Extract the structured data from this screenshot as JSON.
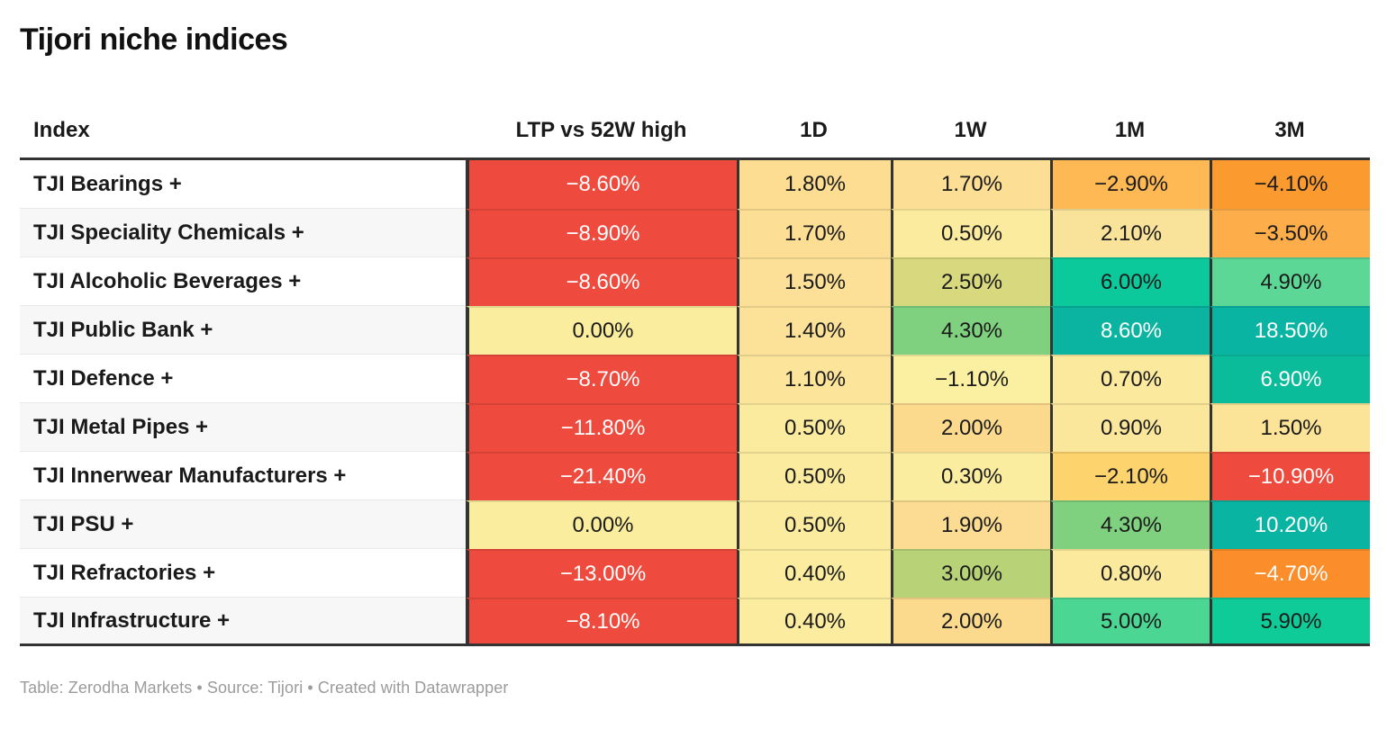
{
  "chart_data": {
    "type": "table",
    "title": "Tijori niche indices",
    "footer": "Table: Zerodha Markets • Source: Tijori • Created with Datawrapper",
    "columns": [
      {
        "label": "Index"
      },
      {
        "label": "LTP vs 52W high"
      },
      {
        "label": "1D"
      },
      {
        "label": "1W"
      },
      {
        "label": "1M"
      },
      {
        "label": "3M"
      }
    ],
    "palette": {
      "negative_red": "#ee4b3e",
      "neutral_yellow": "#faee9e",
      "positive_teal": "#0ab4a2",
      "border_dark": "#333333"
    },
    "rows": [
      {
        "index": "TJI Bearings +",
        "values": [
          {
            "text": "−8.60%",
            "bg": "#ee4b3e",
            "fg": "#ffffff"
          },
          {
            "text": "1.80%",
            "bg": "#fcdd92",
            "fg": "#1a1a1a"
          },
          {
            "text": "1.70%",
            "bg": "#fcde94",
            "fg": "#1a1a1a"
          },
          {
            "text": "−2.90%",
            "bg": "#feb955",
            "fg": "#1a1a1a"
          },
          {
            "text": "−4.10%",
            "bg": "#fb9a2e",
            "fg": "#1a1a1a"
          }
        ]
      },
      {
        "index": "TJI Speciality Chemicals +",
        "values": [
          {
            "text": "−8.90%",
            "bg": "#ee4b3e",
            "fg": "#ffffff"
          },
          {
            "text": "1.70%",
            "bg": "#fcde94",
            "fg": "#1a1a1a"
          },
          {
            "text": "0.50%",
            "bg": "#fbeb9e",
            "fg": "#1a1a1a"
          },
          {
            "text": "2.10%",
            "bg": "#f9e299",
            "fg": "#1a1a1a"
          },
          {
            "text": "−3.50%",
            "bg": "#fdad49",
            "fg": "#1a1a1a"
          }
        ]
      },
      {
        "index": "TJI Alcoholic Beverages +",
        "values": [
          {
            "text": "−8.60%",
            "bg": "#ee4b3e",
            "fg": "#ffffff"
          },
          {
            "text": "1.50%",
            "bg": "#fce098",
            "fg": "#1a1a1a"
          },
          {
            "text": "2.50%",
            "bg": "#d8d87e",
            "fg": "#1a1a1a"
          },
          {
            "text": "6.00%",
            "bg": "#0bc99b",
            "fg": "#1a1a1a"
          },
          {
            "text": "4.90%",
            "bg": "#5cd796",
            "fg": "#1a1a1a"
          }
        ]
      },
      {
        "index": "TJI Public Bank +",
        "values": [
          {
            "text": "0.00%",
            "bg": "#faee9e",
            "fg": "#1a1a1a"
          },
          {
            "text": "1.40%",
            "bg": "#fce199",
            "fg": "#1a1a1a"
          },
          {
            "text": "4.30%",
            "bg": "#7fd17f",
            "fg": "#1a1a1a"
          },
          {
            "text": "8.60%",
            "bg": "#0ab4a0",
            "fg": "#ffffff"
          },
          {
            "text": "18.50%",
            "bg": "#0ab4a2",
            "fg": "#ffffff"
          }
        ]
      },
      {
        "index": "TJI Defence +",
        "values": [
          {
            "text": "−8.70%",
            "bg": "#ee4b3e",
            "fg": "#ffffff"
          },
          {
            "text": "1.10%",
            "bg": "#fce49b",
            "fg": "#1a1a1a"
          },
          {
            "text": "−1.10%",
            "bg": "#fbf0a1",
            "fg": "#1a1a1a"
          },
          {
            "text": "0.70%",
            "bg": "#fbe99d",
            "fg": "#1a1a1a"
          },
          {
            "text": "6.90%",
            "bg": "#0bbc9b",
            "fg": "#ffffff"
          }
        ]
      },
      {
        "index": "TJI Metal Pipes +",
        "values": [
          {
            "text": "−11.80%",
            "bg": "#ee4b3e",
            "fg": "#ffffff"
          },
          {
            "text": "0.50%",
            "bg": "#fbeb9e",
            "fg": "#1a1a1a"
          },
          {
            "text": "2.00%",
            "bg": "#fbda8e",
            "fg": "#1a1a1a"
          },
          {
            "text": "0.90%",
            "bg": "#fbe79b",
            "fg": "#1a1a1a"
          },
          {
            "text": "1.50%",
            "bg": "#fbe498",
            "fg": "#1a1a1a"
          }
        ]
      },
      {
        "index": "TJI Innerwear Manufacturers +",
        "values": [
          {
            "text": "−21.40%",
            "bg": "#ee4b3e",
            "fg": "#ffffff"
          },
          {
            "text": "0.50%",
            "bg": "#fbeb9e",
            "fg": "#1a1a1a"
          },
          {
            "text": "0.30%",
            "bg": "#fbed9f",
            "fg": "#1a1a1a"
          },
          {
            "text": "−2.10%",
            "bg": "#fdd36e",
            "fg": "#1a1a1a"
          },
          {
            "text": "−10.90%",
            "bg": "#ee4b3e",
            "fg": "#ffffff"
          }
        ]
      },
      {
        "index": "TJI PSU +",
        "values": [
          {
            "text": "0.00%",
            "bg": "#faee9e",
            "fg": "#1a1a1a"
          },
          {
            "text": "0.50%",
            "bg": "#fbeb9e",
            "fg": "#1a1a1a"
          },
          {
            "text": "1.90%",
            "bg": "#fbdc92",
            "fg": "#1a1a1a"
          },
          {
            "text": "4.30%",
            "bg": "#7fd07f",
            "fg": "#1a1a1a"
          },
          {
            "text": "10.20%",
            "bg": "#0ab4a2",
            "fg": "#ffffff"
          }
        ]
      },
      {
        "index": "TJI Refractories +",
        "values": [
          {
            "text": "−13.00%",
            "bg": "#ee4b3e",
            "fg": "#ffffff"
          },
          {
            "text": "0.40%",
            "bg": "#fbec9f",
            "fg": "#1a1a1a"
          },
          {
            "text": "3.00%",
            "bg": "#b8d377",
            "fg": "#1a1a1a"
          },
          {
            "text": "0.80%",
            "bg": "#fbe99d",
            "fg": "#1a1a1a"
          },
          {
            "text": "−4.70%",
            "bg": "#fb8d2a",
            "fg": "#ffffff"
          }
        ]
      },
      {
        "index": "TJI Infrastructure +",
        "values": [
          {
            "text": "−8.10%",
            "bg": "#ee4b3e",
            "fg": "#ffffff"
          },
          {
            "text": "0.40%",
            "bg": "#fbec9f",
            "fg": "#1a1a1a"
          },
          {
            "text": "2.00%",
            "bg": "#fbda8e",
            "fg": "#1a1a1a"
          },
          {
            "text": "5.00%",
            "bg": "#4cd694",
            "fg": "#1a1a1a"
          },
          {
            "text": "5.90%",
            "bg": "#0ecb97",
            "fg": "#1a1a1a"
          }
        ]
      }
    ]
  }
}
